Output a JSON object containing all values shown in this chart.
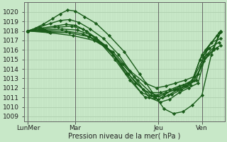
{
  "xlabel": "Pression niveau de la mer( hPa )",
  "bg_color": "#c8e8c8",
  "grid_color_h": "#a8c8a8",
  "grid_color_v": "#b8d8b8",
  "line_color": "#1a5c1a",
  "ylim": [
    1008.5,
    1021.0
  ],
  "xlim": [
    -0.05,
    5.25
  ],
  "yticks": [
    1009,
    1010,
    1011,
    1012,
    1013,
    1014,
    1015,
    1016,
    1017,
    1018,
    1019,
    1020
  ],
  "xtick_positions": [
    0.05,
    1.3,
    3.5,
    4.65
  ],
  "xtick_labels": [
    "LunMer",
    "Mar",
    "Jeu",
    "Ven"
  ],
  "lines": [
    {
      "x": [
        0.05,
        0.25,
        0.45,
        0.7,
        0.9,
        1.1,
        1.3,
        1.55,
        1.85,
        2.2,
        2.6,
        3.0,
        3.4,
        3.65,
        3.9,
        4.15,
        4.4,
        4.65,
        4.9,
        5.15
      ],
      "y": [
        1018.0,
        1018.3,
        1018.7,
        1019.3,
        1019.8,
        1020.2,
        1020.1,
        1019.5,
        1018.8,
        1017.5,
        1015.8,
        1013.5,
        1011.2,
        1009.8,
        1009.3,
        1009.5,
        1010.2,
        1011.2,
        1015.5,
        1017.9
      ],
      "marker": "D",
      "ms": 2.2,
      "lw": 1.0
    },
    {
      "x": [
        0.05,
        0.35,
        0.65,
        0.9,
        1.15,
        1.4,
        1.7,
        2.05,
        2.45,
        2.85,
        3.25,
        3.55,
        3.8,
        4.05,
        4.3,
        4.55,
        4.8,
        5.1
      ],
      "y": [
        1018.0,
        1018.4,
        1018.8,
        1019.1,
        1019.2,
        1018.9,
        1018.2,
        1017.2,
        1015.5,
        1013.2,
        1011.0,
        1010.5,
        1010.8,
        1011.5,
        1012.0,
        1012.5,
        1016.2,
        1017.8
      ],
      "marker": "D",
      "ms": 2.2,
      "lw": 1.0
    },
    {
      "x": [
        0.05,
        0.4,
        0.75,
        1.05,
        1.3,
        1.6,
        1.95,
        2.35,
        2.75,
        3.15,
        3.5,
        3.75,
        4.0,
        4.25,
        4.5,
        4.75,
        5.05
      ],
      "y": [
        1018.0,
        1018.3,
        1018.5,
        1018.7,
        1018.6,
        1018.0,
        1016.8,
        1015.0,
        1012.8,
        1011.0,
        1010.8,
        1011.2,
        1011.8,
        1012.2,
        1012.8,
        1016.0,
        1017.5
      ],
      "marker": "D",
      "ms": 2.2,
      "lw": 1.0
    },
    {
      "x": [
        0.05,
        0.45,
        0.85,
        1.2,
        1.5,
        1.85,
        2.25,
        2.65,
        3.05,
        3.4,
        3.65,
        3.9,
        4.15,
        4.4,
        4.65,
        4.9,
        5.15
      ],
      "y": [
        1018.0,
        1018.2,
        1018.4,
        1018.5,
        1018.2,
        1017.3,
        1015.8,
        1013.5,
        1011.5,
        1011.0,
        1011.3,
        1011.8,
        1012.3,
        1012.8,
        1015.5,
        1016.8,
        1017.2
      ],
      "marker": "D",
      "ms": 2.2,
      "lw": 1.0
    },
    {
      "x": [
        0.05,
        0.5,
        0.95,
        1.35,
        1.7,
        2.1,
        2.5,
        2.9,
        3.3,
        3.6,
        3.85,
        4.1,
        4.35,
        4.6,
        4.85,
        5.1
      ],
      "y": [
        1018.0,
        1018.1,
        1018.2,
        1018.1,
        1017.6,
        1016.5,
        1014.5,
        1012.5,
        1011.2,
        1011.0,
        1011.3,
        1011.8,
        1012.3,
        1015.0,
        1016.2,
        1016.8
      ],
      "marker": "D",
      "ms": 2.2,
      "lw": 1.0
    },
    {
      "x": [
        0.05,
        0.55,
        1.05,
        1.5,
        1.9,
        2.3,
        2.7,
        3.1,
        3.45,
        3.7,
        3.95,
        4.2,
        4.45,
        4.7,
        4.95,
        5.15
      ],
      "y": [
        1018.0,
        1018.0,
        1018.0,
        1017.7,
        1017.0,
        1015.5,
        1013.5,
        1011.8,
        1011.2,
        1011.5,
        1011.8,
        1012.2,
        1012.8,
        1014.8,
        1016.0,
        1016.5
      ],
      "marker": "D",
      "ms": 2.2,
      "lw": 1.0
    },
    {
      "x": [
        0.05,
        0.6,
        1.15,
        1.65,
        2.1,
        2.55,
        2.95,
        3.3,
        3.55,
        3.8,
        4.05,
        4.3,
        4.55,
        4.8,
        5.05
      ],
      "y": [
        1018.0,
        1017.9,
        1017.8,
        1017.4,
        1016.4,
        1014.5,
        1012.8,
        1011.5,
        1011.5,
        1011.8,
        1012.2,
        1012.5,
        1013.5,
        1015.5,
        1016.2
      ],
      "marker": "D",
      "ms": 2.2,
      "lw": 1.0
    },
    {
      "x": [
        0.05,
        0.65,
        1.25,
        1.8,
        2.3,
        2.75,
        3.15,
        3.45,
        3.7,
        3.95,
        4.2,
        4.45,
        4.7,
        4.95,
        5.15
      ],
      "y": [
        1018.0,
        1017.8,
        1017.5,
        1017.0,
        1015.8,
        1013.8,
        1012.5,
        1012.0,
        1012.2,
        1012.5,
        1012.8,
        1013.2,
        1015.2,
        1016.2,
        1018.0
      ],
      "marker": "D",
      "ms": 2.2,
      "lw": 1.0
    }
  ],
  "figsize": [
    3.2,
    2.0
  ],
  "dpi": 100
}
